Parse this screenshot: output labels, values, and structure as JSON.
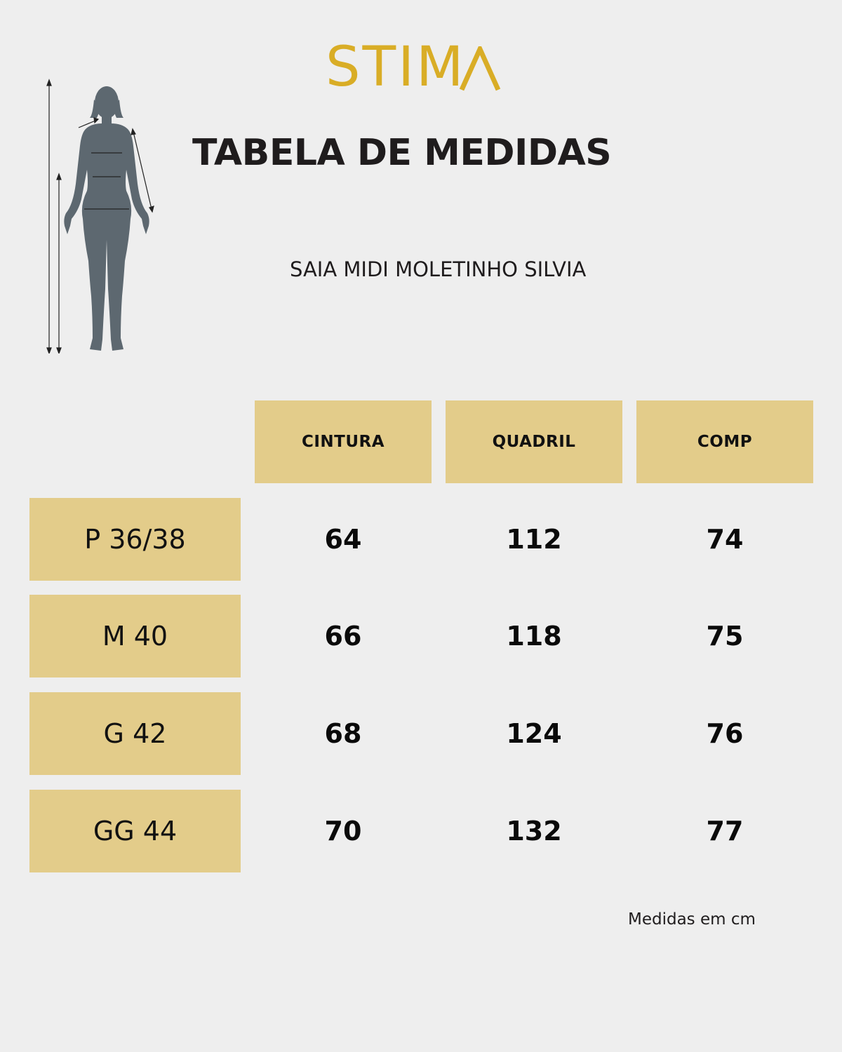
{
  "brand": {
    "name": "STIMA",
    "name_prefix": "STIM",
    "color": "#d9ad26"
  },
  "title": "TABELA DE MEDIDAS",
  "product_name": "SAIA MIDI MOLETINHO SILVIA",
  "figure_icon": "female-body-measurement-icon",
  "table": {
    "columns": [
      "CINTURA",
      "QUADRIL",
      "COMP"
    ],
    "rows": [
      {
        "size": "P 36/38",
        "values": [
          "64",
          "112",
          "74"
        ]
      },
      {
        "size": "M 40",
        "values": [
          "66",
          "118",
          "75"
        ]
      },
      {
        "size": "G 42",
        "values": [
          "68",
          "124",
          "76"
        ]
      },
      {
        "size": "GG 44",
        "values": [
          "70",
          "132",
          "77"
        ]
      }
    ],
    "cell_color": "#e3cc8a"
  },
  "note": "Medidas em cm"
}
